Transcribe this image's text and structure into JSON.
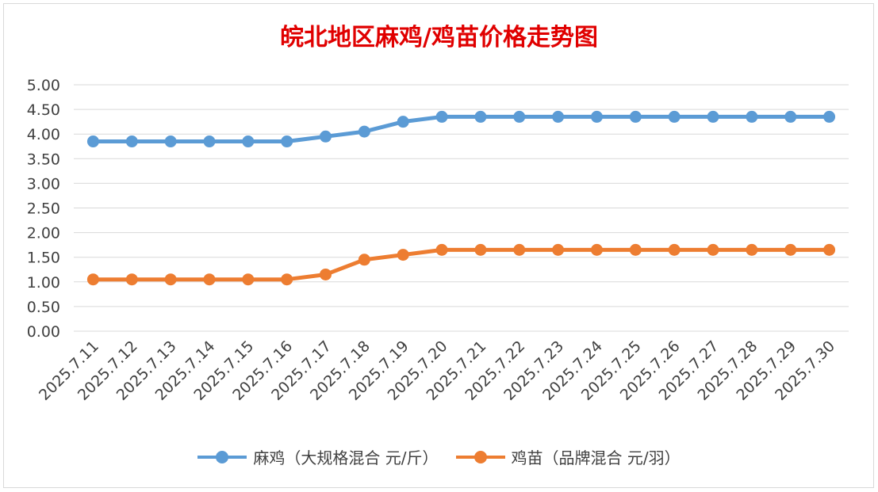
{
  "chart_data": {
    "type": "line",
    "title": "皖北地区麻鸡/鸡苗价格走势图",
    "categories": [
      "2025.7.11",
      "2025.7.12",
      "2025.7.13",
      "2025.7.14",
      "2025.7.15",
      "2025.7.16",
      "2025.7.17",
      "2025.7.18",
      "2025.7.19",
      "2025.7.20",
      "2025.7.21",
      "2025.7.22",
      "2025.7.23",
      "2025.7.24",
      "2025.7.25",
      "2025.7.26",
      "2025.7.27",
      "2025.7.28",
      "2025.7.29",
      "2025.7.30"
    ],
    "y_ticks": [
      "0.00",
      "0.50",
      "1.00",
      "1.50",
      "2.00",
      "2.50",
      "3.00",
      "3.50",
      "4.00",
      "4.50",
      "5.00"
    ],
    "ylim": [
      0,
      5
    ],
    "grid": true,
    "legend_position": "bottom",
    "series": [
      {
        "name": "麻鸡（大规格混合 元/斤）",
        "color": "#5b9bd5",
        "values": [
          3.85,
          3.85,
          3.85,
          3.85,
          3.85,
          3.85,
          3.95,
          4.05,
          4.25,
          4.35,
          4.35,
          4.35,
          4.35,
          4.35,
          4.35,
          4.35,
          4.35,
          4.35,
          4.35,
          4.35
        ]
      },
      {
        "name": "鸡苗（品牌混合 元/羽）",
        "color": "#ed7d31",
        "values": [
          1.05,
          1.05,
          1.05,
          1.05,
          1.05,
          1.05,
          1.15,
          1.45,
          1.55,
          1.65,
          1.65,
          1.65,
          1.65,
          1.65,
          1.65,
          1.65,
          1.65,
          1.65,
          1.65,
          1.65
        ]
      }
    ]
  }
}
